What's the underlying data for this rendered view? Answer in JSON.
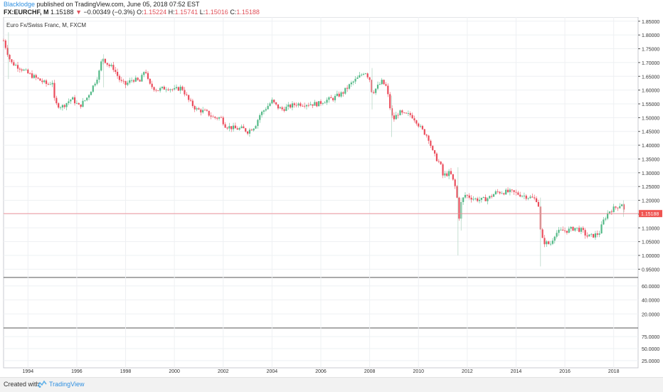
{
  "header": {
    "author": "Blacklodge",
    "published": "published on TradingView.com, June 05, 2018 07:52 EST",
    "symbol": "FX:EURCHF, M",
    "last": "1.15188",
    "change_arrow": "▼",
    "change": "−0.00349 (−0.3%)",
    "open_label": "O:",
    "open": "1.15224",
    "high_label": "H:",
    "high": "1.15741",
    "low_label": "L:",
    "low": "1.15016",
    "close_label": "C:",
    "close": "1.15188"
  },
  "footer": {
    "created_with": "Created with",
    "brand": "TradingView"
  },
  "colors": {
    "up": "#53b987",
    "down": "#eb4d5c",
    "grid": "#eef0f3",
    "price_line": "#ef8a93",
    "price_label_bg": "#ef5350",
    "axis_text": "#333333",
    "logo": "#5fb0e8"
  },
  "chart_data": {
    "type": "candlestick",
    "title": "Euro Fx/Swiss Franc, M, FXCM",
    "price_axis": {
      "ticks": [
        1.85,
        1.8,
        1.75,
        1.7,
        1.65,
        1.6,
        1.55,
        1.5,
        1.45,
        1.4,
        1.35,
        1.3,
        1.25,
        1.2,
        1.15,
        1.1,
        1.05,
        1.0,
        0.95
      ],
      "tick_labels": [
        "1.85000",
        "1.80000",
        "1.75000",
        "1.70000",
        "1.65000",
        "1.60000",
        "1.55000",
        "1.50000",
        "1.45000",
        "1.40000",
        "1.35000",
        "1.30000",
        "1.25000",
        "1.20000",
        "1.15000",
        "1.10000",
        "1.05000",
        "1.00000",
        "0.95000"
      ],
      "range": [
        0.92,
        1.865
      ]
    },
    "last_price": 1.15188,
    "last_price_label": "1.15188",
    "time_axis": {
      "labels": [
        "1994",
        "1996",
        "1998",
        "2000",
        "2002",
        "2004",
        "2006",
        "2008",
        "2010",
        "2012",
        "2014",
        "2016",
        "2018"
      ],
      "range": [
        1993.0,
        2019.0
      ]
    },
    "pane2": {
      "tick_labels": [
        "60.0000",
        "40.0000",
        "20.0000"
      ],
      "ticks": [
        60,
        40,
        20
      ],
      "range": [
        0,
        70
      ]
    },
    "pane3": {
      "tick_labels": [
        "75.0000",
        "50.0000",
        "25.0000"
      ],
      "ticks": [
        75,
        50,
        25
      ],
      "range": [
        10,
        90
      ]
    },
    "close_path": [
      [
        1993.0,
        1.78
      ],
      [
        1993.3,
        1.7
      ],
      [
        1993.7,
        1.68
      ],
      [
        1994.0,
        1.66
      ],
      [
        1994.4,
        1.64
      ],
      [
        1994.8,
        1.62
      ],
      [
        1995.0,
        1.63
      ],
      [
        1995.1,
        1.55
      ],
      [
        1995.4,
        1.54
      ],
      [
        1995.8,
        1.57
      ],
      [
        1996.1,
        1.54
      ],
      [
        1996.4,
        1.57
      ],
      [
        1996.7,
        1.62
      ],
      [
        1996.9,
        1.66
      ],
      [
        1997.05,
        1.72
      ],
      [
        1997.3,
        1.69
      ],
      [
        1997.5,
        1.68
      ],
      [
        1997.8,
        1.63
      ],
      [
        1998.0,
        1.62
      ],
      [
        1998.3,
        1.64
      ],
      [
        1998.6,
        1.63
      ],
      [
        1998.8,
        1.68
      ],
      [
        1998.95,
        1.62
      ],
      [
        1999.3,
        1.6
      ],
      [
        1999.7,
        1.61
      ],
      [
        2000.0,
        1.6
      ],
      [
        2000.3,
        1.61
      ],
      [
        2000.6,
        1.56
      ],
      [
        2000.9,
        1.53
      ],
      [
        2001.3,
        1.52
      ],
      [
        2001.6,
        1.5
      ],
      [
        2001.9,
        1.5
      ],
      [
        2002.1,
        1.47
      ],
      [
        2002.5,
        1.46
      ],
      [
        2002.8,
        1.46
      ],
      [
        2003.0,
        1.45
      ],
      [
        2003.3,
        1.47
      ],
      [
        2003.5,
        1.51
      ],
      [
        2003.8,
        1.54
      ],
      [
        2004.0,
        1.56
      ],
      [
        2004.2,
        1.54
      ],
      [
        2004.4,
        1.53
      ],
      [
        2004.7,
        1.54
      ],
      [
        2005.0,
        1.55
      ],
      [
        2005.5,
        1.55
      ],
      [
        2005.9,
        1.55
      ],
      [
        2006.1,
        1.56
      ],
      [
        2006.5,
        1.57
      ],
      [
        2006.9,
        1.59
      ],
      [
        2007.2,
        1.62
      ],
      [
        2007.6,
        1.65
      ],
      [
        2007.8,
        1.67
      ],
      [
        2008.0,
        1.64
      ],
      [
        2008.1,
        1.59
      ],
      [
        2008.3,
        1.61
      ],
      [
        2008.5,
        1.63
      ],
      [
        2008.7,
        1.61
      ],
      [
        2008.8,
        1.55
      ],
      [
        2008.95,
        1.49
      ],
      [
        2009.2,
        1.52
      ],
      [
        2009.4,
        1.51
      ],
      [
        2009.7,
        1.51
      ],
      [
        2009.9,
        1.49
      ],
      [
        2010.1,
        1.46
      ],
      [
        2010.4,
        1.43
      ],
      [
        2010.6,
        1.37
      ],
      [
        2010.9,
        1.33
      ],
      [
        2011.0,
        1.29
      ],
      [
        2011.3,
        1.3
      ],
      [
        2011.5,
        1.25
      ],
      [
        2011.6,
        1.2
      ],
      [
        2011.65,
        1.13
      ],
      [
        2011.75,
        1.19
      ],
      [
        2011.9,
        1.22
      ],
      [
        2012.3,
        1.205
      ],
      [
        2012.6,
        1.201
      ],
      [
        2012.9,
        1.21
      ],
      [
        2013.2,
        1.23
      ],
      [
        2013.5,
        1.23
      ],
      [
        2013.8,
        1.23
      ],
      [
        2014.2,
        1.22
      ],
      [
        2014.6,
        1.21
      ],
      [
        2014.9,
        1.2
      ],
      [
        2015.0,
        1.09
      ],
      [
        2015.1,
        1.05
      ],
      [
        2015.4,
        1.04
      ],
      [
        2015.6,
        1.08
      ],
      [
        2015.9,
        1.09
      ],
      [
        2016.1,
        1.09
      ],
      [
        2016.4,
        1.1
      ],
      [
        2016.7,
        1.09
      ],
      [
        2016.9,
        1.07
      ],
      [
        2017.1,
        1.07
      ],
      [
        2017.4,
        1.08
      ],
      [
        2017.6,
        1.13
      ],
      [
        2017.8,
        1.16
      ],
      [
        2018.0,
        1.17
      ],
      [
        2018.2,
        1.18
      ],
      [
        2018.35,
        1.19
      ],
      [
        2018.45,
        1.15
      ]
    ],
    "spikes": [
      [
        1993.2,
        1.81,
        1.64
      ],
      [
        1997.1,
        1.73,
        1.61
      ],
      [
        2008.1,
        1.68,
        1.53
      ],
      [
        2008.9,
        1.58,
        1.43
      ],
      [
        2011.62,
        1.32,
        1.0
      ],
      [
        2011.75,
        1.21,
        1.09
      ],
      [
        2015.0,
        1.21,
        0.96
      ],
      [
        2018.4,
        1.2,
        1.14
      ]
    ]
  }
}
